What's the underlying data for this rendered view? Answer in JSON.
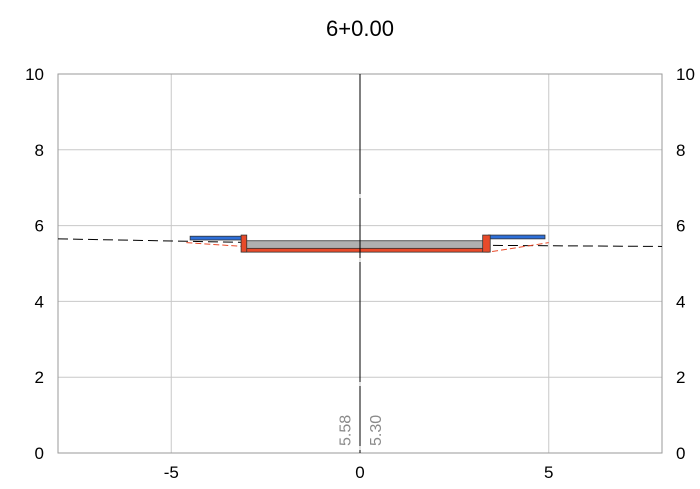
{
  "chart_data": {
    "type": "cross-section",
    "title": "6+0.00",
    "xlim": [
      -8,
      8
    ],
    "ylim": [
      0,
      10
    ],
    "x_ticks": [
      "-5",
      "0",
      "5"
    ],
    "x_tick_values": [
      -5,
      0,
      5
    ],
    "y_ticks": [
      "0",
      "2",
      "4",
      "6",
      "8",
      "10"
    ],
    "y_tick_values": [
      0,
      2,
      4,
      6,
      8,
      10
    ],
    "grid": true,
    "centerline_x": 0,
    "elevation_labels": [
      {
        "text": "5.58",
        "x": -0.25
      },
      {
        "text": "5.30",
        "x": 0.55
      }
    ],
    "ground_line": {
      "x": [
        -8,
        0,
        8
      ],
      "y": [
        5.65,
        5.5,
        5.45
      ]
    },
    "design_surface": {
      "x": [
        -4.6,
        -3.1,
        0,
        3.4,
        5.0
      ],
      "y": [
        5.55,
        5.45,
        5.35,
        5.3,
        5.55
      ]
    },
    "layers": [
      {
        "name": "left-sidewalk",
        "x": [
          -4.5,
          -3.1
        ],
        "top": 5.72,
        "bottom": 5.62,
        "color": "#2e6fd8"
      },
      {
        "name": "right-sidewalk",
        "x": [
          3.4,
          4.9
        ],
        "top": 5.75,
        "bottom": 5.65,
        "color": "#2e6fd8"
      },
      {
        "name": "road-surface",
        "x": [
          -3.1,
          3.4
        ],
        "top": 5.6,
        "bottom": 5.35,
        "color": "#b0b0b0"
      },
      {
        "name": "subgrade",
        "x": [
          -3.1,
          3.4
        ],
        "top": 5.4,
        "bottom": 5.3,
        "color": "#e84a2a"
      }
    ],
    "curbs": [
      {
        "name": "left-curb",
        "x": [
          -3.15,
          -3.0
        ],
        "top": 5.75,
        "bottom": 5.3
      },
      {
        "name": "right-curb",
        "x": [
          3.25,
          3.45
        ],
        "top": 5.75,
        "bottom": 5.3
      }
    ],
    "colors": {
      "grid": "#c8c8c8",
      "axis": "#000000",
      "ground": "#000000",
      "asphalt": "#2e6fd8",
      "fill": "#e84a2a"
    }
  }
}
